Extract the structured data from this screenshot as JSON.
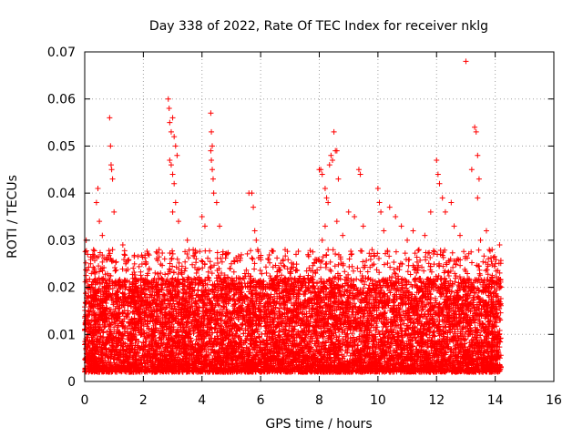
{
  "chart_data": {
    "type": "scatter",
    "title": "Day 338 of 2022, Rate Of TEC Index for receiver nklg",
    "xlabel": "GPS time / hours",
    "ylabel": "ROTI / TECUs",
    "xlim": [
      0,
      16
    ],
    "ylim": [
      0,
      0.07
    ],
    "x_ticks": [
      0,
      2,
      4,
      6,
      8,
      10,
      12,
      14,
      16
    ],
    "x_tick_labels": [
      "0",
      "2",
      "4",
      "6",
      "8",
      "10",
      "12",
      "14",
      "16"
    ],
    "y_ticks": [
      0,
      0.01,
      0.02,
      0.03,
      0.04,
      0.05,
      0.06,
      0.07
    ],
    "y_tick_labels": [
      "0",
      "0.01",
      "0.02",
      "0.03",
      "0.04",
      "0.05",
      "0.06",
      "0.07"
    ],
    "grid": true,
    "marker": "+",
    "color": "#ff0000",
    "data_x_range": [
      0,
      14.2
    ],
    "series": [
      {
        "name": "ROTI",
        "points": [
          [
            0.05,
            0.03
          ],
          [
            0.1,
            0.027
          ],
          [
            0.2,
            0.025
          ],
          [
            0.3,
            0.028
          ],
          [
            0.4,
            0.038
          ],
          [
            0.45,
            0.041
          ],
          [
            0.5,
            0.034
          ],
          [
            0.6,
            0.031
          ],
          [
            0.85,
            0.056
          ],
          [
            0.88,
            0.05
          ],
          [
            0.9,
            0.046
          ],
          [
            0.92,
            0.045
          ],
          [
            0.95,
            0.043
          ],
          [
            1.0,
            0.036
          ],
          [
            0.95,
            0.028
          ],
          [
            1.3,
            0.029
          ],
          [
            1.35,
            0.027
          ],
          [
            1.4,
            0.025
          ],
          [
            1.7,
            0.022
          ],
          [
            2.0,
            0.021
          ],
          [
            2.2,
            0.024
          ],
          [
            2.5,
            0.019
          ],
          [
            2.85,
            0.06
          ],
          [
            2.88,
            0.058
          ],
          [
            2.9,
            0.055
          ],
          [
            2.95,
            0.053
          ],
          [
            3.0,
            0.056
          ],
          [
            3.05,
            0.052
          ],
          [
            3.1,
            0.05
          ],
          [
            3.15,
            0.048
          ],
          [
            2.9,
            0.047
          ],
          [
            2.95,
            0.046
          ],
          [
            3.0,
            0.044
          ],
          [
            3.05,
            0.042
          ],
          [
            3.1,
            0.038
          ],
          [
            3.0,
            0.036
          ],
          [
            3.2,
            0.034
          ],
          [
            3.5,
            0.03
          ],
          [
            3.7,
            0.028
          ],
          [
            4.0,
            0.035
          ],
          [
            4.1,
            0.033
          ],
          [
            4.3,
            0.057
          ],
          [
            4.32,
            0.053
          ],
          [
            4.35,
            0.05
          ],
          [
            4.3,
            0.049
          ],
          [
            4.32,
            0.047
          ],
          [
            4.35,
            0.045
          ],
          [
            4.38,
            0.043
          ],
          [
            4.4,
            0.04
          ],
          [
            4.5,
            0.038
          ],
          [
            4.6,
            0.033
          ],
          [
            4.8,
            0.027
          ],
          [
            5.0,
            0.025
          ],
          [
            5.4,
            0.022
          ],
          [
            5.6,
            0.04
          ],
          [
            5.7,
            0.04
          ],
          [
            5.75,
            0.037
          ],
          [
            5.8,
            0.032
          ],
          [
            5.85,
            0.03
          ],
          [
            5.9,
            0.028
          ],
          [
            6.2,
            0.023
          ],
          [
            6.6,
            0.021
          ],
          [
            7.0,
            0.022
          ],
          [
            7.5,
            0.019
          ],
          [
            7.8,
            0.02
          ],
          [
            8.0,
            0.045
          ],
          [
            8.05,
            0.045
          ],
          [
            8.1,
            0.044
          ],
          [
            8.2,
            0.041
          ],
          [
            8.25,
            0.039
          ],
          [
            8.3,
            0.038
          ],
          [
            8.35,
            0.046
          ],
          [
            8.4,
            0.048
          ],
          [
            8.45,
            0.047
          ],
          [
            8.5,
            0.053
          ],
          [
            8.55,
            0.049
          ],
          [
            8.6,
            0.049
          ],
          [
            8.65,
            0.043
          ],
          [
            8.1,
            0.03
          ],
          [
            8.2,
            0.033
          ],
          [
            8.3,
            0.028
          ],
          [
            8.6,
            0.034
          ],
          [
            8.8,
            0.031
          ],
          [
            9.0,
            0.036
          ],
          [
            9.2,
            0.035
          ],
          [
            9.35,
            0.045
          ],
          [
            9.4,
            0.044
          ],
          [
            9.5,
            0.033
          ],
          [
            9.8,
            0.028
          ],
          [
            10.0,
            0.041
          ],
          [
            10.05,
            0.038
          ],
          [
            10.1,
            0.036
          ],
          [
            10.2,
            0.032
          ],
          [
            10.4,
            0.037
          ],
          [
            10.6,
            0.035
          ],
          [
            10.8,
            0.033
          ],
          [
            11.0,
            0.03
          ],
          [
            11.2,
            0.032
          ],
          [
            11.4,
            0.028
          ],
          [
            11.6,
            0.031
          ],
          [
            11.8,
            0.036
          ],
          [
            12.0,
            0.047
          ],
          [
            12.05,
            0.044
          ],
          [
            12.1,
            0.042
          ],
          [
            12.2,
            0.039
          ],
          [
            12.3,
            0.036
          ],
          [
            12.5,
            0.038
          ],
          [
            12.6,
            0.033
          ],
          [
            12.8,
            0.031
          ],
          [
            13.0,
            0.068
          ],
          [
            13.2,
            0.045
          ],
          [
            13.3,
            0.054
          ],
          [
            13.35,
            0.053
          ],
          [
            13.4,
            0.048
          ],
          [
            13.45,
            0.043
          ],
          [
            13.4,
            0.039
          ],
          [
            13.5,
            0.03
          ],
          [
            13.7,
            0.032
          ],
          [
            13.8,
            0.028
          ],
          [
            14.0,
            0.025
          ],
          [
            14.15,
            0.029
          ]
        ]
      }
    ],
    "bulk": {
      "description_free": true,
      "x_range": [
        0,
        14.2
      ],
      "typical_y_range": [
        0.002,
        0.022
      ],
      "peak_y": 0.068
    }
  }
}
